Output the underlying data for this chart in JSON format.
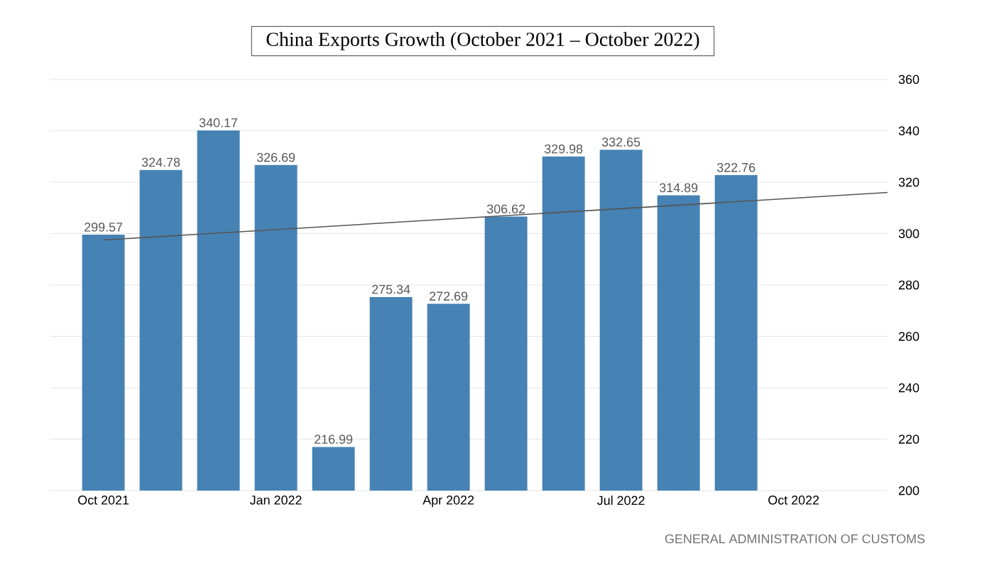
{
  "chart_data": {
    "type": "bar",
    "title": "China Exports Growth (October 2021 – October 2022)",
    "x": [
      "2021-10",
      "2021-11",
      "2021-12",
      "2022-01",
      "2022-02",
      "2022-03",
      "2022-04",
      "2022-05",
      "2022-06",
      "2022-07",
      "2022-08",
      "2022-09"
    ],
    "series": [
      {
        "color": "#4682b4",
        "values": [
          299.57,
          324.78,
          340.17,
          326.69,
          216.99,
          275.34,
          272.69,
          306.62,
          329.98,
          332.65,
          314.89,
          322.76
        ],
        "value_labels": [
          "299.57",
          "324.78",
          "340.17",
          "326.69",
          "216.99",
          "275.34",
          "272.69",
          "306.62",
          "329.98",
          "332.65",
          "314.89",
          "322.76"
        ]
      },
      {
        "type": "line",
        "color": "#555555",
        "x": [
          "2021-10",
          "2022-11-20"
        ],
        "values": [
          297.5,
          316
        ]
      }
    ],
    "xlim": [
      "2021-09-03",
      "2022-11-20"
    ],
    "xticks": [
      {
        "value": "2021-10",
        "label": "Oct 2021"
      },
      {
        "value": "2022-01",
        "label": "Jan 2022"
      },
      {
        "value": "2022-04",
        "label": "Apr 2022"
      },
      {
        "value": "2022-07",
        "label": "Jul 2022"
      },
      {
        "value": "2022-10",
        "label": "Oct 2022"
      }
    ],
    "ylim": [
      200,
      360
    ],
    "yticks": [
      200,
      220,
      240,
      260,
      280,
      300,
      320,
      340,
      360
    ],
    "grid": "y",
    "annotations": [
      "GENERAL ADMINISTRATION OF CUSTOMS"
    ]
  }
}
